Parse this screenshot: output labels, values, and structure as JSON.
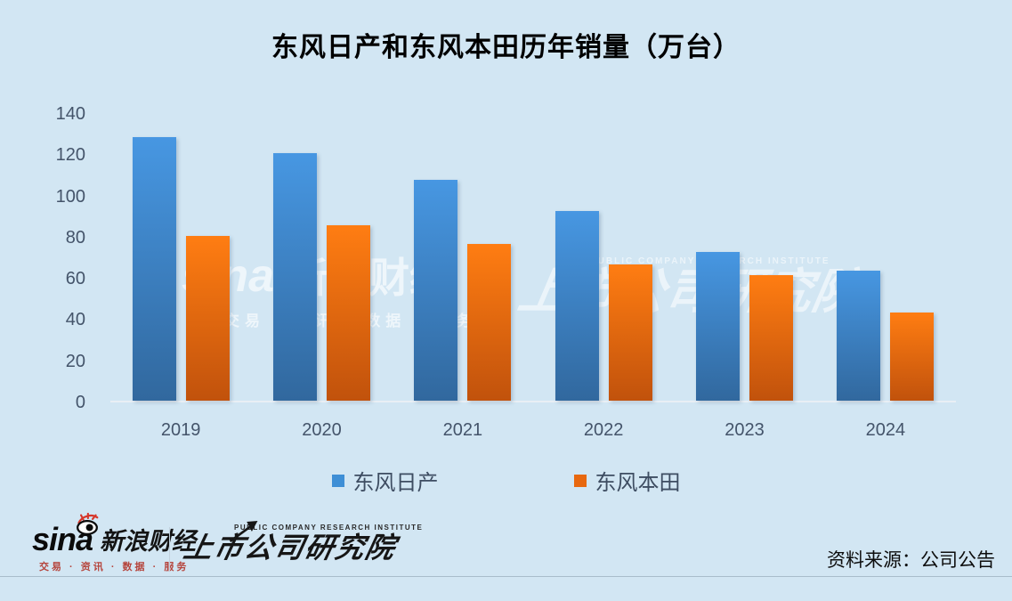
{
  "chart_data": {
    "type": "bar",
    "title": "东风日产和东风本田历年销量（万台）",
    "categories": [
      "2019",
      "2020",
      "2021",
      "2022",
      "2023",
      "2024"
    ],
    "series": [
      {
        "name": "东风日产",
        "values": [
          128,
          120,
          107,
          92,
          72,
          63
        ],
        "color_top": "#4797E2",
        "color_bottom": "#31689E",
        "legend_color": "#3E8FD6"
      },
      {
        "name": "东风本田",
        "values": [
          80,
          85,
          76,
          66,
          61,
          43
        ],
        "color_top": "#FF7D12",
        "color_bottom": "#C1520C",
        "legend_color": "#E8680F"
      }
    ],
    "xlabel": "",
    "ylabel": "",
    "ylim": [
      0,
      140
    ],
    "yticks": [
      0,
      20,
      40,
      60,
      80,
      100,
      120,
      140
    ],
    "grid": false,
    "legend_position": "bottom"
  },
  "colors": {
    "background": "#D2E6F3",
    "axis_text": "#44546A",
    "title_text": "#000000",
    "baseline": "#E9EFF5",
    "footer_rule": "#A9BDCB",
    "sina_red": "#D6372B",
    "tagline_red": "#B5443C"
  },
  "watermarks": {
    "sina": {
      "brand": "sina",
      "brand_cjk": "新浪财经",
      "tagline": "交易 · 资讯 · 数据 · 服务"
    },
    "pcri": {
      "small": "PUBLIC COMPANY RESEARCH INSTITUTE",
      "main": "上市公司研究院"
    }
  },
  "footer": {
    "sina_logo": {
      "brand": "sina",
      "brand_cjk": "新浪财经",
      "tagline": "交易 · 资讯 · 数据 · 服务"
    },
    "pcri_logo": {
      "small": "PUBLIC COMPANY RESEARCH INSTITUTE",
      "main": "上市公司研究院"
    },
    "source": "资料来源：公司公告"
  }
}
